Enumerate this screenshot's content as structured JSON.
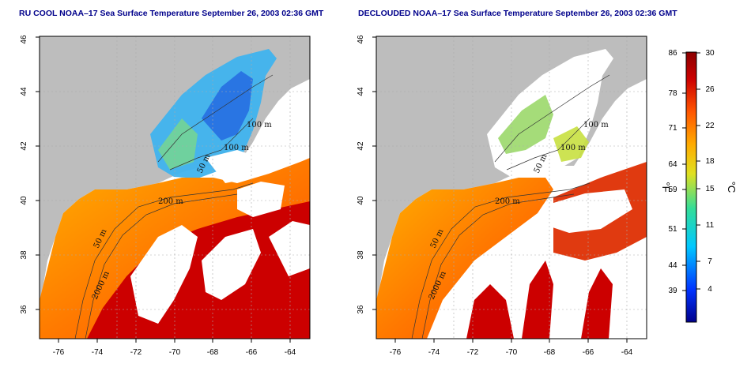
{
  "panels": [
    {
      "title": "RU COOL NOAA–17 Sea Surface Temperature September 26, 2003 02:36 GMT",
      "x_ticks": [
        "-76",
        "-74",
        "-72",
        "-70",
        "-68",
        "-66",
        "-64"
      ],
      "y_ticks": [
        "36",
        "38",
        "40",
        "42",
        "44",
        "46"
      ],
      "contour_labels": [
        "100 m",
        "100 m",
        "50 m",
        "200 m",
        "50 m",
        "2000 m"
      ]
    },
    {
      "title": "DECLOUDED NOAA–17 Sea Surface Temperature September 26, 2003 02:36 GMT",
      "x_ticks": [
        "-76",
        "-74",
        "-72",
        "-70",
        "-68",
        "-66",
        "-64"
      ],
      "y_ticks": [
        "36",
        "38",
        "40",
        "42",
        "44",
        "46"
      ],
      "contour_labels": [
        "100 m",
        "100 m",
        "50 m",
        "200 m",
        "50 m",
        "2000 m"
      ]
    }
  ],
  "colorbar": {
    "fahrenheit_ticks": [
      "86",
      "78",
      "71",
      "64",
      "59",
      "51",
      "44",
      "39"
    ],
    "celsius_ticks": [
      "30",
      "26",
      "22",
      "18",
      "15",
      "11",
      "7",
      "4"
    ],
    "left_label": "°F",
    "right_label": "°C",
    "colors": [
      "#00008b",
      "#0033ff",
      "#00c8ff",
      "#33dd99",
      "#e0e020",
      "#ffaa00",
      "#ff5500",
      "#cc0000",
      "#8b0000"
    ]
  },
  "map_colors": {
    "land": "#bdbdbd",
    "cloud": "#ffffff",
    "warm": "#ff6a00",
    "gulfstream": "#cc0000",
    "cool": "#2aa9f0"
  }
}
